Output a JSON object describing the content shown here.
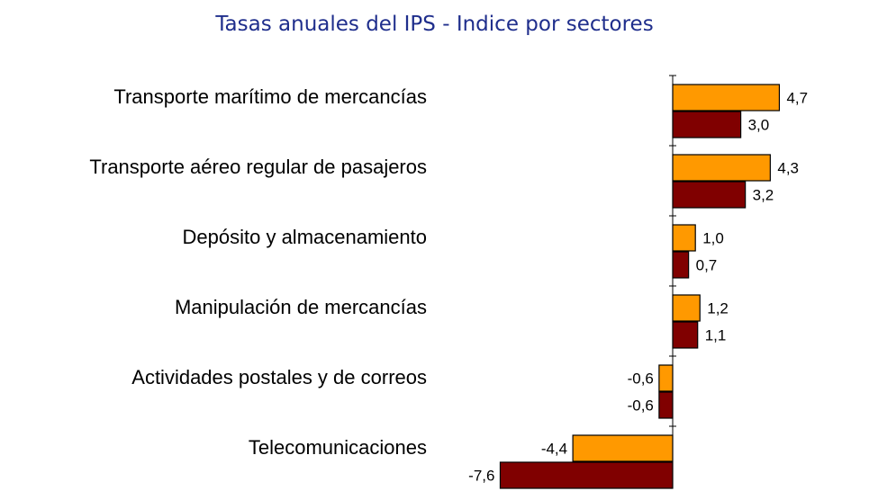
{
  "chart_data": {
    "type": "bar",
    "orientation": "horizontal",
    "title": "Tasas anuales del IPS - Indice por sectores",
    "categories": [
      "Transporte marítimo de mercancías",
      "Transporte aéreo regular de pasajeros",
      "Depósito y almacenamiento",
      "Manipulación de mercancías",
      "Actividades postales y de correos",
      "Telecomunicaciones"
    ],
    "series": [
      {
        "values": [
          4.7,
          4.3,
          1.0,
          1.2,
          -0.6,
          -4.4
        ],
        "value_labels": [
          "4,7",
          "4,3",
          "1,0",
          "1,2",
          "-0,6",
          "-4,4"
        ]
      },
      {
        "values": [
          3.0,
          3.2,
          0.7,
          1.1,
          -0.6,
          -7.6
        ],
        "value_labels": [
          "3,0",
          "3,2",
          "0,7",
          "1,1",
          "-0,6",
          "-7,6"
        ]
      }
    ],
    "colors": [
      "#ff9900",
      "#800000"
    ],
    "grid": false,
    "legend": "none"
  }
}
